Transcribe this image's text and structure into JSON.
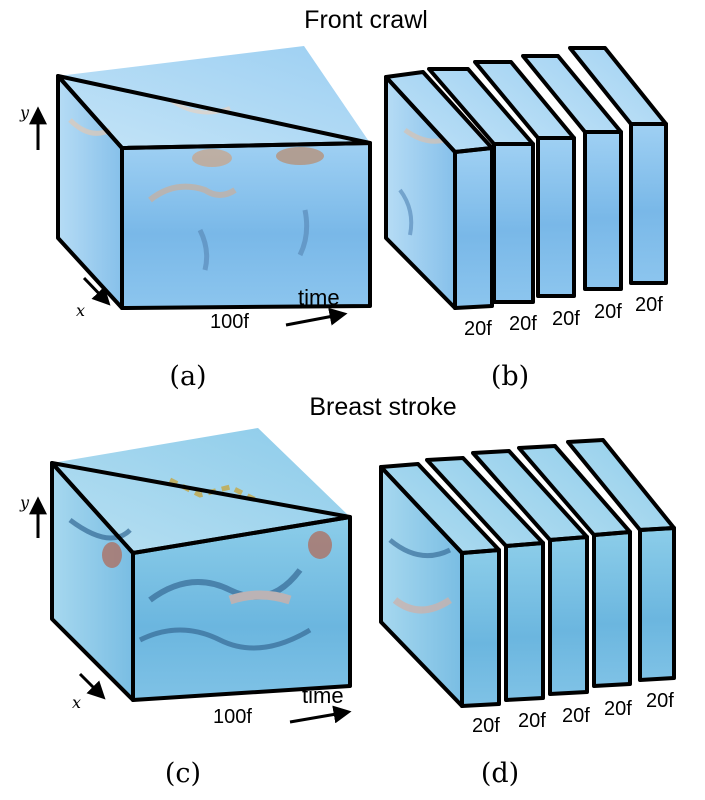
{
  "figure": {
    "sections": [
      {
        "title": "Front crawl",
        "panels": [
          {
            "caption": "(a)",
            "frame_label": "100f",
            "time_label": "time",
            "y_label": "y",
            "x_label": "x"
          },
          {
            "caption": "(b)",
            "clip_labels": [
              "20f",
              "20f",
              "20f",
              "20f",
              "20f"
            ]
          }
        ]
      },
      {
        "title": "Breast stroke",
        "panels": [
          {
            "caption": "(c)",
            "frame_label": "100f",
            "time_label": "time",
            "y_label": "y",
            "x_label": "x"
          },
          {
            "caption": "(d)",
            "clip_labels": [
              "20f",
              "20f",
              "20f",
              "20f",
              "20f"
            ]
          }
        ]
      }
    ],
    "colors": {
      "water_light": "#a9d4f2",
      "water_mid": "#7fbde9",
      "water_dark": "#5fa6dc",
      "stroke": "#000000"
    }
  }
}
